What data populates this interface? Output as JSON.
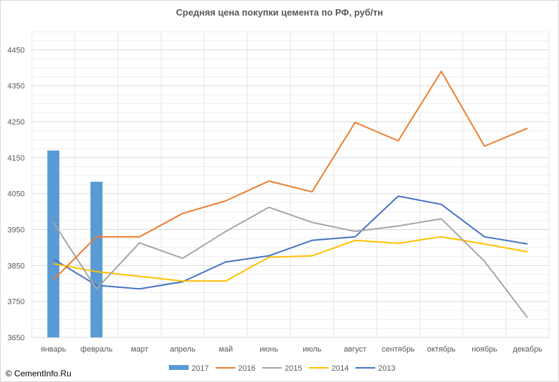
{
  "chart_data": {
    "type": "line",
    "title": "Средняя цена покупки цемента по РФ, руб/тн",
    "xlabel": "",
    "ylabel": "",
    "ylim": [
      3650,
      4500
    ],
    "yticks": [
      3650,
      3750,
      3850,
      3950,
      4050,
      4150,
      4250,
      4350,
      4450
    ],
    "grid": true,
    "legend": "bottom",
    "categories": [
      "январь",
      "февраль",
      "март",
      "апрель",
      "май",
      "июнь",
      "июль",
      "август",
      "сентябрь",
      "октябрь",
      "ноябрь",
      "декабрь"
    ],
    "series": [
      {
        "name": "2017",
        "type": "bar",
        "color": "#5b9bd5",
        "values": [
          4170,
          4083,
          null,
          null,
          null,
          null,
          null,
          null,
          null,
          null,
          null,
          null
        ]
      },
      {
        "name": "2016",
        "type": "line",
        "color": "#ed7d31",
        "values": [
          3810,
          3930,
          3930,
          3995,
          4030,
          4085,
          4055,
          4248,
          4197,
          4390,
          4182,
          4232
        ]
      },
      {
        "name": "2015",
        "type": "line",
        "color": "#a5a5a5",
        "values": [
          3970,
          3785,
          3913,
          3870,
          3945,
          4012,
          3970,
          3945,
          3960,
          3980,
          3862,
          3705
        ]
      },
      {
        "name": "2014",
        "type": "line",
        "color": "#ffc000",
        "values": [
          3855,
          3833,
          3820,
          3807,
          3807,
          3873,
          3877,
          3920,
          3912,
          3930,
          3910,
          3888
        ]
      },
      {
        "name": "2013",
        "type": "line",
        "color": "#4472c4",
        "values": [
          3868,
          3795,
          3785,
          3805,
          3860,
          3877,
          3920,
          3930,
          4043,
          4020,
          3930,
          3910
        ]
      }
    ]
  },
  "copyright": "© CementInfo.Ru"
}
